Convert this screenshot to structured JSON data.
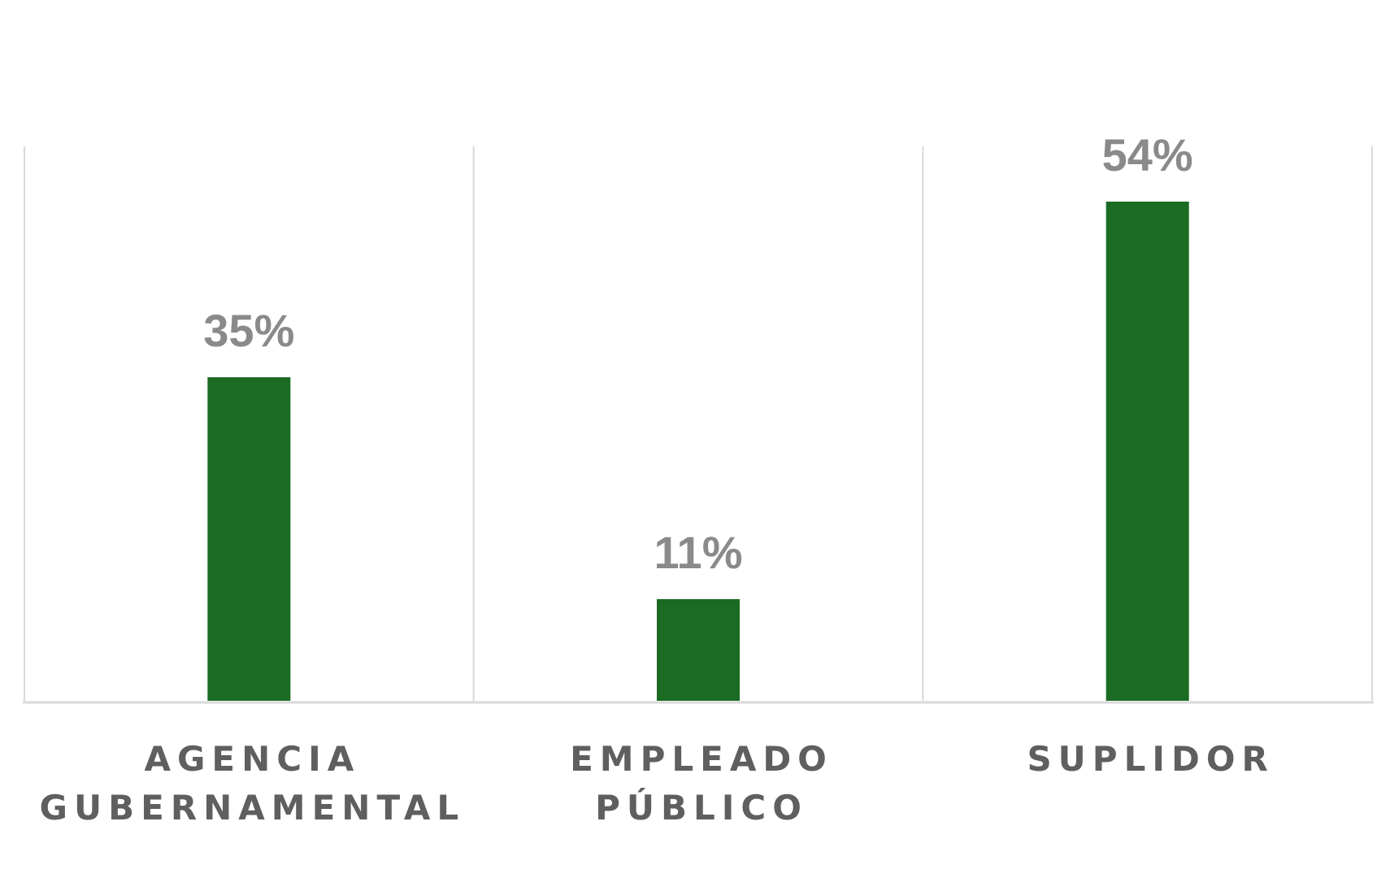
{
  "chart_data": {
    "type": "bar",
    "categories": [
      [
        "AGENCIA",
        "GUBERNAMENTAL"
      ],
      [
        "EMPLEADO",
        "PÚBLICO"
      ],
      [
        "SUPLIDOR"
      ]
    ],
    "values": [
      35,
      11,
      54
    ],
    "value_labels": [
      "35%",
      "11%",
      "54%"
    ],
    "title": "",
    "xlabel": "",
    "ylabel": "",
    "ylim": [
      0,
      60
    ],
    "grid": "vertical separators",
    "legend": "none",
    "colors": {
      "bar": "#1b6b23",
      "value_text": "#8a8a8a",
      "category_text": "#5f5f5f",
      "grid": "#d9d9d9"
    }
  }
}
